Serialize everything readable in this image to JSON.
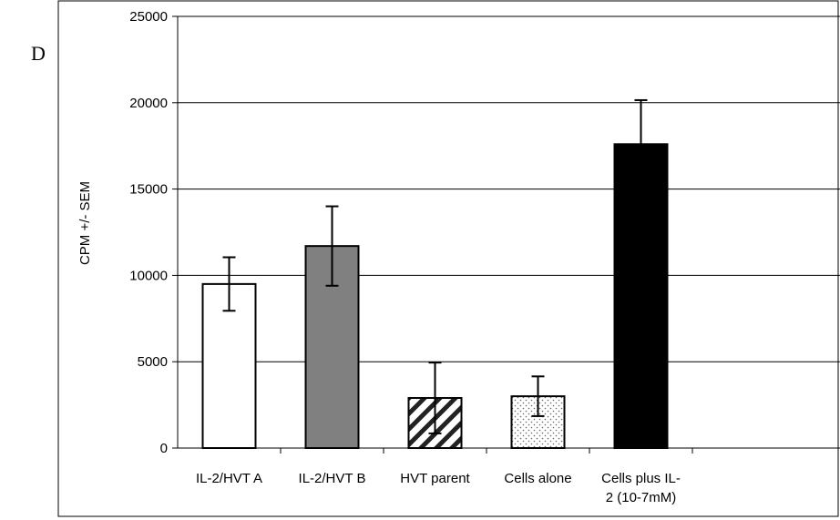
{
  "panel_label": "D",
  "chart_data": {
    "type": "bar",
    "title": "",
    "xlabel": "",
    "ylabel": "CPM +/- SEM",
    "ylim": [
      0,
      25000
    ],
    "yticks": [
      0,
      5000,
      10000,
      15000,
      20000,
      25000
    ],
    "grid": true,
    "categories": [
      [
        "IL-2/HVT A"
      ],
      [
        "IL-2/HVT B"
      ],
      [
        "HVT parent"
      ],
      [
        "Cells alone"
      ],
      [
        "Cells plus IL-",
        "2 (10-7mM)"
      ]
    ],
    "values": [
      9500,
      11700,
      2900,
      3000,
      17600
    ],
    "errors": [
      1550,
      2300,
      2050,
      1150,
      2550
    ],
    "bar_styles": [
      {
        "fill": "#ffffff",
        "pattern": "none"
      },
      {
        "fill": "#808080",
        "pattern": "none"
      },
      {
        "fill": "#ffffff",
        "pattern": "diagonal-hatch"
      },
      {
        "fill": "#ffffff",
        "pattern": "dots"
      },
      {
        "fill": "#000000",
        "pattern": "none"
      }
    ]
  }
}
